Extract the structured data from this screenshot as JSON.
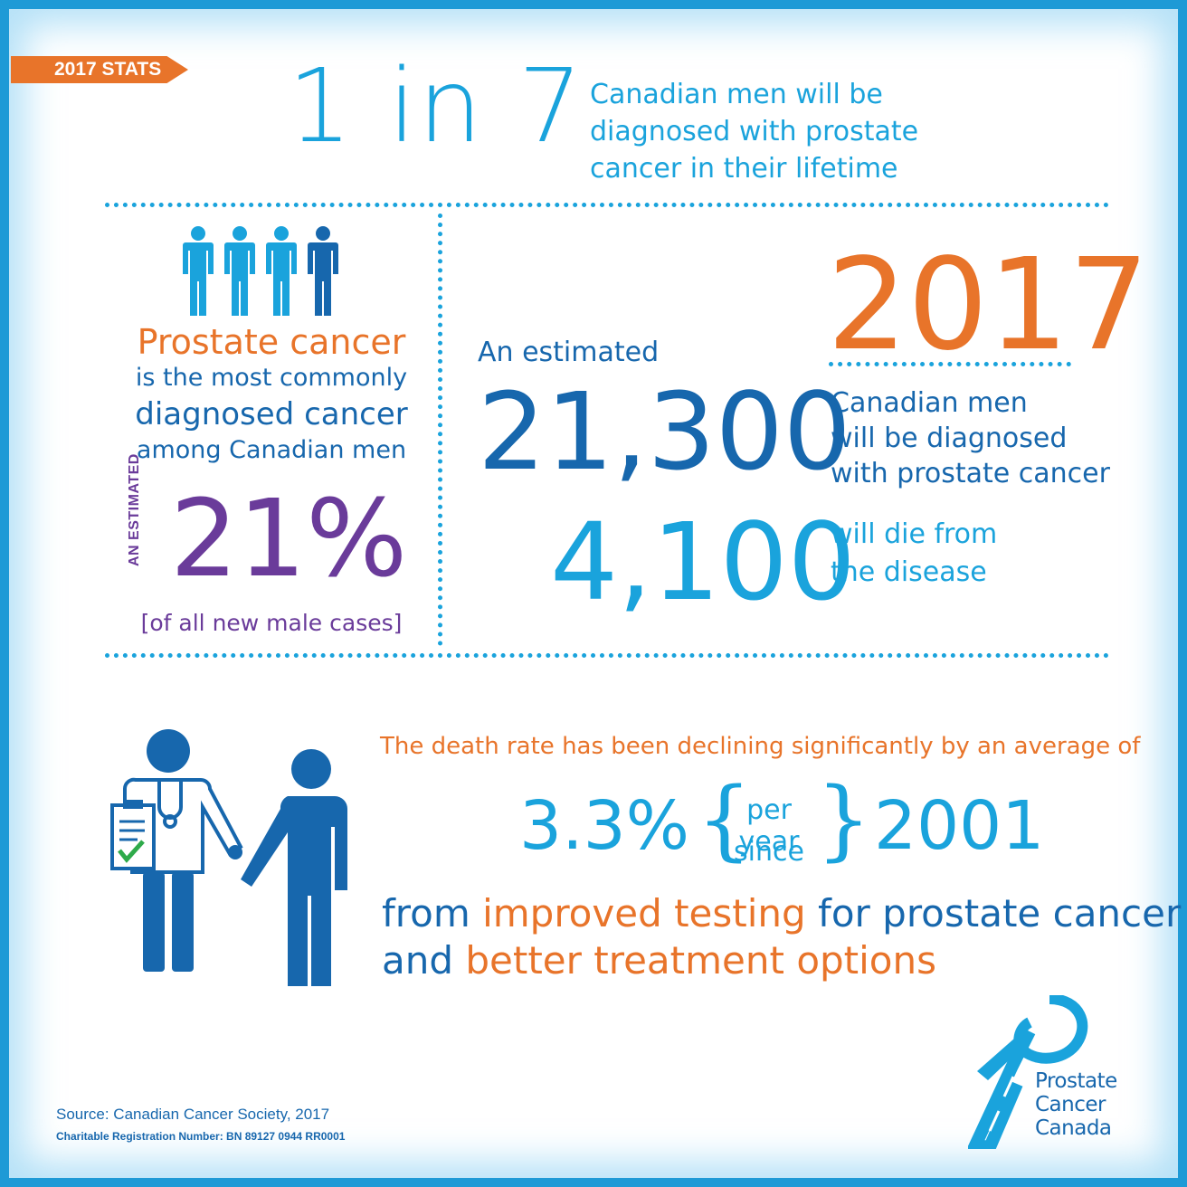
{
  "banner": {
    "label": "2017 STATS"
  },
  "headline": {
    "big": "1 in 7",
    "lines": [
      "Canadian men will be",
      "diagnosed with prostate",
      "cancer in their lifetime"
    ]
  },
  "left_panel": {
    "title": "Prostate cancer",
    "lines": [
      "is the most commonly",
      "diagnosed cancer",
      "among Canadian men"
    ],
    "estimated_label": "AN ESTIMATED",
    "percent": "21%",
    "cases_note": "[of all new male cases]"
  },
  "right_panel": {
    "estimated": "An estimated",
    "diagnosed_count": "21,300",
    "death_count": "4,100",
    "year": "2017",
    "diagnosed_lines": [
      "Canadian men",
      "will be diagnosed",
      "with prostate cancer"
    ],
    "death_lines": [
      "will die from",
      "the disease"
    ]
  },
  "decline": {
    "intro": "The death rate has been declining significantly by an average of",
    "rate": "3.3%",
    "per_year": "per year",
    "since": "since",
    "since_year": "2001",
    "line1": {
      "a": "from ",
      "b": "improved testing",
      "c": " for prostate cancer"
    },
    "line2": {
      "a": "and ",
      "b": "better treatment options"
    }
  },
  "footer": {
    "source": "Source: Canadian Cancer Society, 2017",
    "registration": "Charitable Registration Number: BN 89127 0944 RR0001"
  },
  "logo": {
    "line1": "Prostate Cancer",
    "line2": "Canada"
  },
  "colors": {
    "light_blue": "#1aa3dc",
    "dark_blue": "#1767ad",
    "orange": "#e8742a",
    "purple": "#6a3b9a"
  },
  "icons": [
    "men-group-icon",
    "doctor-icon",
    "patient-icon",
    "ribbon-logo-icon"
  ]
}
